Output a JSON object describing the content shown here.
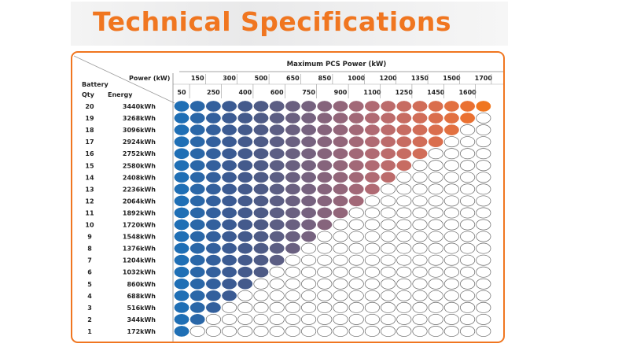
{
  "title": "Technical Specifications",
  "table": {
    "top_header": "Maximum PCS Power (kW)",
    "corner": {
      "power_label": "Power (kW)",
      "battery_label": "Battery",
      "qty_label": "Qty",
      "energy_label": "Energy"
    },
    "power_upper": [
      "150",
      "300",
      "500",
      "650",
      "850",
      "1000",
      "1200",
      "1350",
      "1500",
      "1700"
    ],
    "power_lower": [
      "50",
      "250",
      "400",
      "600",
      "750",
      "900",
      "1100",
      "1250",
      "1450",
      "1600"
    ],
    "power_columns": [
      50,
      150,
      250,
      300,
      400,
      500,
      600,
      650,
      750,
      850,
      900,
      1000,
      1100,
      1200,
      1250,
      1350,
      1450,
      1500,
      1600,
      1700
    ],
    "rows": [
      {
        "qty": "20",
        "energy": "3440kWh"
      },
      {
        "qty": "19",
        "energy": "3268kWh"
      },
      {
        "qty": "18",
        "energy": "3096kWh"
      },
      {
        "qty": "17",
        "energy": "2924kWh"
      },
      {
        "qty": "16",
        "energy": "2752kWh"
      },
      {
        "qty": "15",
        "energy": "2580kWh"
      },
      {
        "qty": "14",
        "energy": "2408kWh"
      },
      {
        "qty": "13",
        "energy": "2236kWh"
      },
      {
        "qty": "12",
        "energy": "2064kWh"
      },
      {
        "qty": "11",
        "energy": "1892kWh"
      },
      {
        "qty": "10",
        "energy": "1720kWh"
      },
      {
        "qty": "9",
        "energy": "1548kWh"
      },
      {
        "qty": "8",
        "energy": "1376kWh"
      },
      {
        "qty": "7",
        "energy": "1204kWh"
      },
      {
        "qty": "6",
        "energy": "1032kWh"
      },
      {
        "qty": "5",
        "energy": "860kWh"
      },
      {
        "qty": "4",
        "energy": "688kWh"
      },
      {
        "qty": "3",
        "energy": "516kWh"
      },
      {
        "qty": "2",
        "energy": "344kWh"
      },
      {
        "qty": "1",
        "energy": "172kWh"
      }
    ],
    "supported_columns_per_row_note_free": true
  },
  "colors": {
    "accent": "#f07620",
    "palette": [
      "#1f6fb5",
      "#2a67a8",
      "#33609d",
      "#3b5b93",
      "#445a8c",
      "#4e5b86",
      "#5c5e84",
      "#6a6080",
      "#76627f",
      "#86647c",
      "#93667a",
      "#a26877",
      "#b06a73",
      "#bc6b6b",
      "#c76c62",
      "#d16d58",
      "#da6e4d",
      "#e27040",
      "#ea7132",
      "#f07620"
    ],
    "empty_stroke": "#666666"
  }
}
